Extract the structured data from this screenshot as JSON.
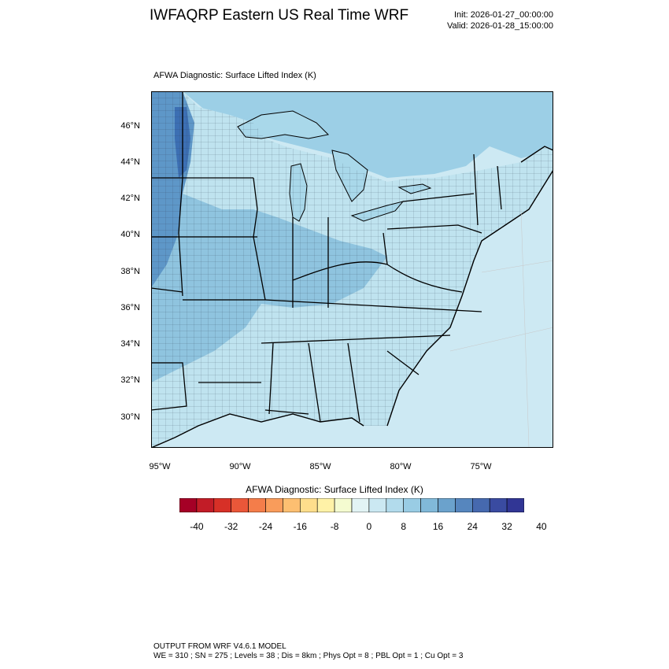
{
  "header": {
    "title": "IWFAQRP Eastern US Real Time WRF",
    "init": "Init: 2026-01-27_00:00:00",
    "valid": "Valid: 2026-01-28_15:00:00"
  },
  "map": {
    "subtitle": "AFWA Diagnostic: Surface Lifted Index   (K)",
    "lat_labels": [
      "46°N",
      "44°N",
      "42°N",
      "40°N",
      "38°N",
      "36°N",
      "34°N",
      "32°N",
      "30°N"
    ],
    "lon_labels": [
      "95°W",
      "90°W",
      "85°W",
      "80°W",
      "75°W"
    ],
    "colors": {
      "land_light": "#d6eef5",
      "land_mid": "#bfe3ef",
      "land_blue": "#8fc4df",
      "land_deep": "#5e97c8",
      "land_darkest": "#3c6fb3",
      "ocean": "#cde9f3",
      "lake": "#a9d8ea",
      "canada_north": "#9ccfe6"
    }
  },
  "colorbar": {
    "title": "AFWA Diagnostic: Surface Lifted Index  (K)",
    "labels": [
      "-40",
      "-32",
      "-24",
      "-16",
      "-8",
      "0",
      "8",
      "16",
      "24",
      "32",
      "40"
    ],
    "colors": [
      "#a50026",
      "#c21c27",
      "#d73027",
      "#ea5739",
      "#f47d4a",
      "#f99c5b",
      "#fdbf71",
      "#fede8c",
      "#fff2a7",
      "#f4fbd0",
      "#e2f3f4",
      "#cbe8f2",
      "#b2dbec",
      "#99cce4",
      "#81b9d9",
      "#6ba2cc",
      "#5686be",
      "#4669af",
      "#3a4ba1",
      "#313695"
    ]
  },
  "footer": {
    "line1": "OUTPUT FROM WRF V4.6.1 MODEL",
    "line2": "WE = 310 ; SN = 275 ; Levels = 38 ; Dis = 8km ; Phys Opt = 8 ; PBL Opt = 1 ; Cu Opt = 3"
  }
}
